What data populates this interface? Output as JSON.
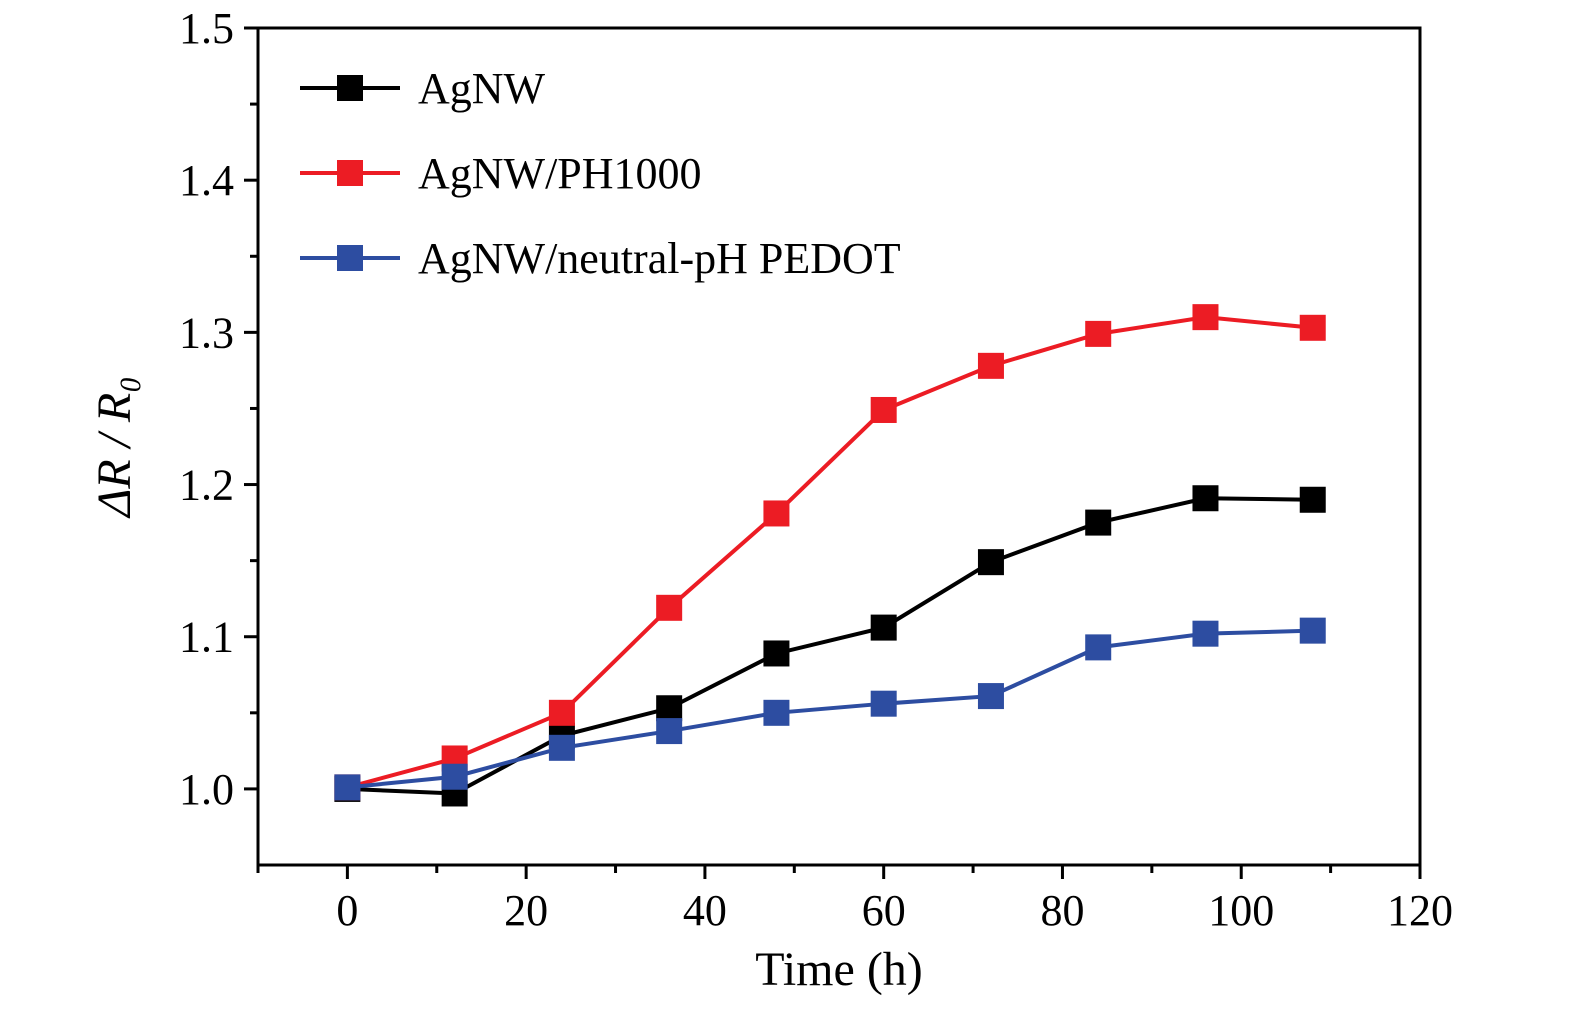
{
  "chart_data": {
    "type": "line",
    "x": [
      0,
      12,
      24,
      36,
      48,
      60,
      72,
      84,
      96,
      108
    ],
    "series": [
      {
        "name": "AgNW",
        "color": "#000000",
        "values": [
          1.0,
          0.997,
          1.035,
          1.053,
          1.089,
          1.106,
          1.149,
          1.175,
          1.191,
          1.19
        ]
      },
      {
        "name": "AgNW/PH1000",
        "color": "#ec1c24",
        "values": [
          1.001,
          1.02,
          1.05,
          1.119,
          1.181,
          1.249,
          1.278,
          1.299,
          1.31,
          1.303
        ]
      },
      {
        "name": "AgNW/neutral-pH PEDOT",
        "color": "#2d4da1",
        "values": [
          1.001,
          1.008,
          1.027,
          1.038,
          1.05,
          1.056,
          1.061,
          1.093,
          1.102,
          1.104
        ]
      }
    ],
    "title": "",
    "xlabel": "Time (h)",
    "ylabel": "ΔR / R₀",
    "xlim": [
      -10,
      120
    ],
    "ylim": [
      0.95,
      1.5
    ],
    "xticks": [
      0,
      20,
      40,
      60,
      80,
      100,
      120
    ],
    "yticks": [
      1.0,
      1.1,
      1.2,
      1.3,
      1.4,
      1.5
    ],
    "x_minor_step": 10,
    "y_minor_step": 0.05,
    "grid": false,
    "legend_position": "top-left",
    "marker": "square",
    "background": "#ffffff",
    "frame_color": "#000000"
  }
}
